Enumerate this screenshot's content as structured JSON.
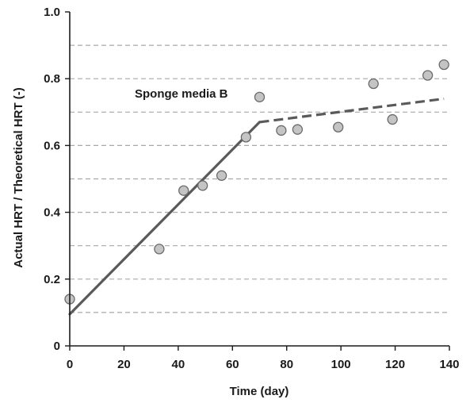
{
  "chart_data": {
    "type": "scatter",
    "title": "",
    "xlabel": "Time (day)",
    "ylabel": "Actual HRT / Theoretical HRT (-)",
    "xlim": [
      0,
      140
    ],
    "ylim": [
      0,
      1.0
    ],
    "x_ticks": [
      0,
      20,
      40,
      60,
      80,
      100,
      120,
      140
    ],
    "x_tick_labels": [
      "0",
      "20",
      "40",
      "60",
      "80",
      "100",
      "120",
      "140"
    ],
    "y_ticks": [
      0,
      0.2,
      0.4,
      0.6,
      0.8,
      1.0
    ],
    "y_tick_labels": [
      "0",
      "0.2",
      "0.4",
      "0.6",
      "0.8",
      "1.0"
    ],
    "y_gridlines": [
      0.1,
      0.2,
      0.3,
      0.4,
      0.5,
      0.6,
      0.7,
      0.8,
      0.9
    ],
    "grid": "horizontal dashed",
    "annotation": "Sponge media B",
    "points": [
      {
        "x": 0,
        "y": 0.14
      },
      {
        "x": 33,
        "y": 0.29
      },
      {
        "x": 42,
        "y": 0.465
      },
      {
        "x": 49,
        "y": 0.48
      },
      {
        "x": 56,
        "y": 0.51
      },
      {
        "x": 65,
        "y": 0.625
      },
      {
        "x": 70,
        "y": 0.745
      },
      {
        "x": 78,
        "y": 0.645
      },
      {
        "x": 84,
        "y": 0.648
      },
      {
        "x": 99,
        "y": 0.655
      },
      {
        "x": 112,
        "y": 0.785
      },
      {
        "x": 119,
        "y": 0.678
      },
      {
        "x": 132,
        "y": 0.81
      },
      {
        "x": 138,
        "y": 0.842
      }
    ],
    "fit_solid": [
      {
        "x": 0,
        "y": 0.095
      },
      {
        "x": 70,
        "y": 0.67
      }
    ],
    "fit_dashed": [
      {
        "x": 70,
        "y": 0.67
      },
      {
        "x": 138,
        "y": 0.74
      }
    ],
    "colors": {
      "point_fill": "#c4c4c4",
      "point_stroke": "#6a6a6a",
      "line": "#5a5a5a",
      "grid": "#a8a8a8",
      "axis": "#1a1a1a"
    }
  }
}
